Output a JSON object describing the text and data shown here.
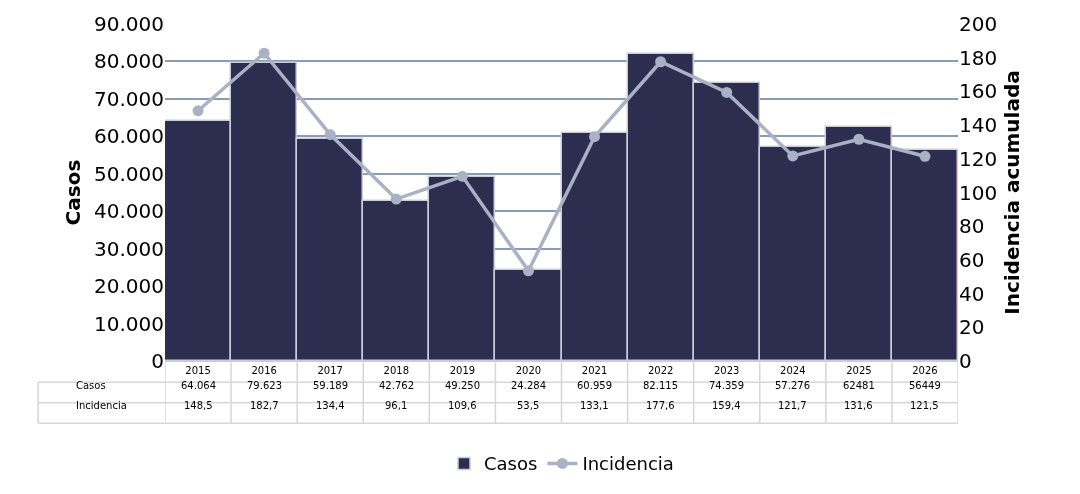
{
  "chart_data": {
    "type": "bar",
    "ylabel": "Casos",
    "y2label": "Incidencia acumulada",
    "categories": [
      "2015",
      "2016",
      "2017",
      "2018",
      "2019",
      "2020",
      "2021",
      "2022",
      "2023",
      "2024",
      "2025",
      "2026"
    ],
    "series": [
      {
        "name": "Casos",
        "color": "#2d2d4f",
        "values": [
          64064,
          79623,
          59189,
          42762,
          49250,
          24284,
          60959,
          82115,
          74359,
          57276,
          62481,
          56449
        ],
        "value_labels": [
          "64.064",
          "79.623",
          "59.189",
          "42.762",
          "49.250",
          "24.284",
          "60.959",
          "82.115",
          "74.359",
          "57.276",
          "62481",
          "56449"
        ]
      },
      {
        "name": "Incidencia",
        "type": "line",
        "axis": "y2",
        "color": "#a9b1c4",
        "marker": "circle",
        "values": [
          148.5,
          182.7,
          134.4,
          96.1,
          109.6,
          53.5,
          133.1,
          177.6,
          159.4,
          121.7,
          131.6,
          121.5
        ],
        "value_labels": [
          "148,5",
          "182,7",
          "134,4",
          "96,1",
          "109,6",
          "53,5",
          "133,1",
          "177,6",
          "159,4",
          "121,7",
          "131,6",
          "121,5"
        ]
      }
    ],
    "ylim": [
      0,
      90000
    ],
    "yticks": [
      {
        "value": 0,
        "label": "0"
      },
      {
        "value": 10000,
        "label": "10.000"
      },
      {
        "value": 20000,
        "label": "20.000"
      },
      {
        "value": 30000,
        "label": "30.000"
      },
      {
        "value": 40000,
        "label": "40.000"
      },
      {
        "value": 50000,
        "label": "50.000"
      },
      {
        "value": 60000,
        "label": "60.000"
      },
      {
        "value": 70000,
        "label": "70.000"
      },
      {
        "value": 80000,
        "label": "80.000"
      },
      {
        "value": 90000,
        "label": "90.000"
      }
    ],
    "y2lim": [
      0,
      200
    ],
    "y2ticks": [
      0,
      20,
      40,
      60,
      80,
      100,
      120,
      140,
      160,
      180,
      200
    ],
    "grid": "y",
    "legend": "bottom"
  }
}
